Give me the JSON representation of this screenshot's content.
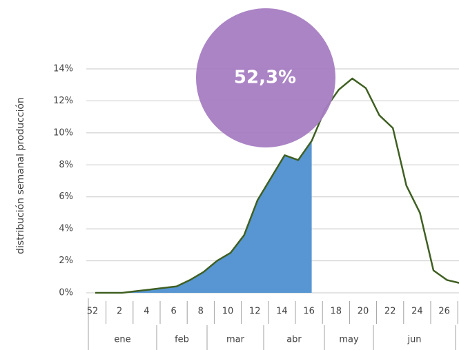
{
  "chart_data": {
    "type": "line",
    "y_label": "distribución semanal producción",
    "annotation": "52,3%",
    "annotation_color": "#a77dc2",
    "categories": [
      "52",
      null,
      "2",
      null,
      "4",
      null,
      "6",
      null,
      "8",
      null,
      "10",
      null,
      "12",
      null,
      "14",
      null,
      "16",
      null,
      "18",
      null,
      "20",
      null,
      "22",
      null,
      "24",
      null,
      "26",
      null
    ],
    "months": [
      "ene",
      "feb",
      "mar",
      "abr",
      "may",
      "jun"
    ],
    "series": [
      {
        "color": "#5796d2",
        "fill": true,
        "values": [
          0,
          0,
          0,
          0.1,
          0.2,
          0.3,
          0.4,
          0.8,
          1.3,
          2.0,
          2.5,
          3.6,
          5.8,
          7.2,
          8.6,
          8.3,
          9.5,
          null,
          null,
          null,
          null,
          null,
          null,
          null,
          null,
          null,
          null,
          null
        ]
      },
      {
        "color": "#3f5f22",
        "fill": false,
        "values": [
          0,
          0,
          0,
          0.1,
          0.2,
          0.3,
          0.4,
          0.8,
          1.3,
          2.0,
          2.5,
          3.6,
          5.8,
          7.2,
          8.6,
          8.3,
          9.5,
          11.5,
          12.7,
          13.4,
          12.8,
          11.1,
          10.3,
          6.7,
          5.0,
          1.4,
          0.8,
          0.6
        ]
      }
    ],
    "ylim": [
      0,
      14
    ],
    "yticks": [
      {
        "value": 0,
        "label": "0%"
      },
      {
        "value": 2,
        "label": "2%"
      },
      {
        "value": 4,
        "label": "4%"
      },
      {
        "value": 6,
        "label": "6%"
      },
      {
        "value": 8,
        "label": "8%"
      },
      {
        "value": 10,
        "label": "10%"
      },
      {
        "value": 12,
        "label": "12%"
      },
      {
        "value": 14,
        "label": "14%"
      }
    ],
    "grid": true
  }
}
